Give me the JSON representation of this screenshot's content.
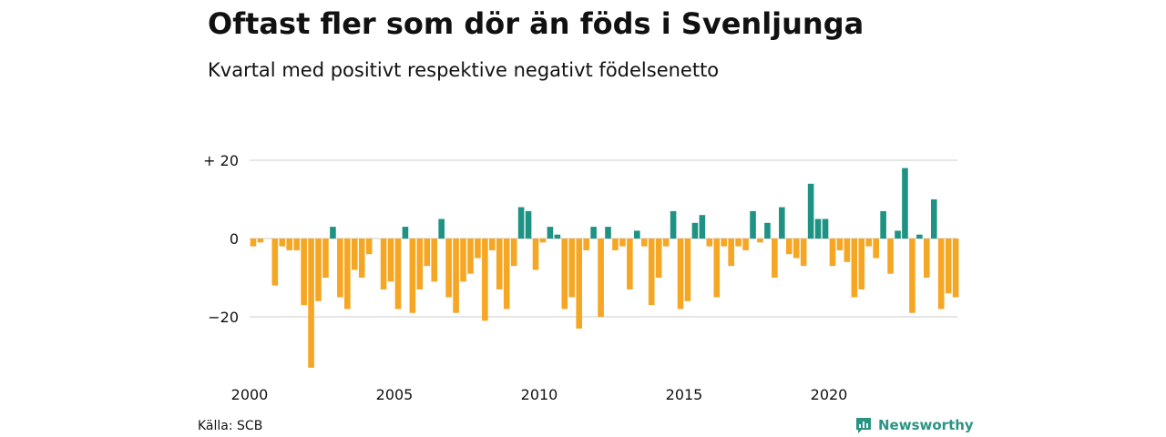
{
  "header": {
    "title": "Oftast fler som dör än föds i Svenljunga",
    "subtitle": "Kvartal med positivt respektive negativt födelsenetto"
  },
  "footer": {
    "source": "Källa: SCB",
    "brand": "Newsworthy",
    "brand_icon": "newsworthy-logo-icon"
  },
  "colors": {
    "positive": "#1f9383",
    "negative": "#f5a623",
    "grid": "#dddddd",
    "brand": "#2a9484"
  },
  "chart_data": {
    "type": "bar",
    "x_start": "2000 Q1",
    "x_step": "quarter",
    "values": [
      -2,
      -1,
      0,
      -12,
      -2,
      -3,
      -3,
      -17,
      -33,
      -16,
      -10,
      3,
      -15,
      -18,
      -8,
      -10,
      -4,
      0,
      -13,
      -11,
      -18,
      3,
      -19,
      -13,
      -7,
      -11,
      5,
      -15,
      -19,
      -11,
      -9,
      -5,
      -21,
      -3,
      -13,
      -18,
      -7,
      8,
      7,
      -8,
      -1,
      3,
      1,
      -18,
      -15,
      -23,
      -3,
      3,
      -20,
      3,
      -3,
      -2,
      -13,
      2,
      -2,
      -17,
      -10,
      -2,
      7,
      -18,
      -16,
      4,
      6,
      -2,
      -15,
      -2,
      -7,
      -2,
      -3,
      7,
      -1,
      4,
      -10,
      8,
      -4,
      -5,
      -7,
      14,
      5,
      5,
      -7,
      -3,
      -6,
      -15,
      -13,
      -2,
      -5,
      7,
      -9,
      2,
      18,
      -19,
      1,
      -10,
      10,
      -18,
      -14,
      -15
    ],
    "x_tick_labels": [
      "2000",
      "2005",
      "2010",
      "2015",
      "2020"
    ],
    "y_ticks": [
      20,
      0,
      -20
    ],
    "y_tick_labels": [
      "+ 20",
      "0",
      "−20"
    ],
    "ylim": [
      -35,
      20
    ],
    "grid": true,
    "legend": "none"
  }
}
